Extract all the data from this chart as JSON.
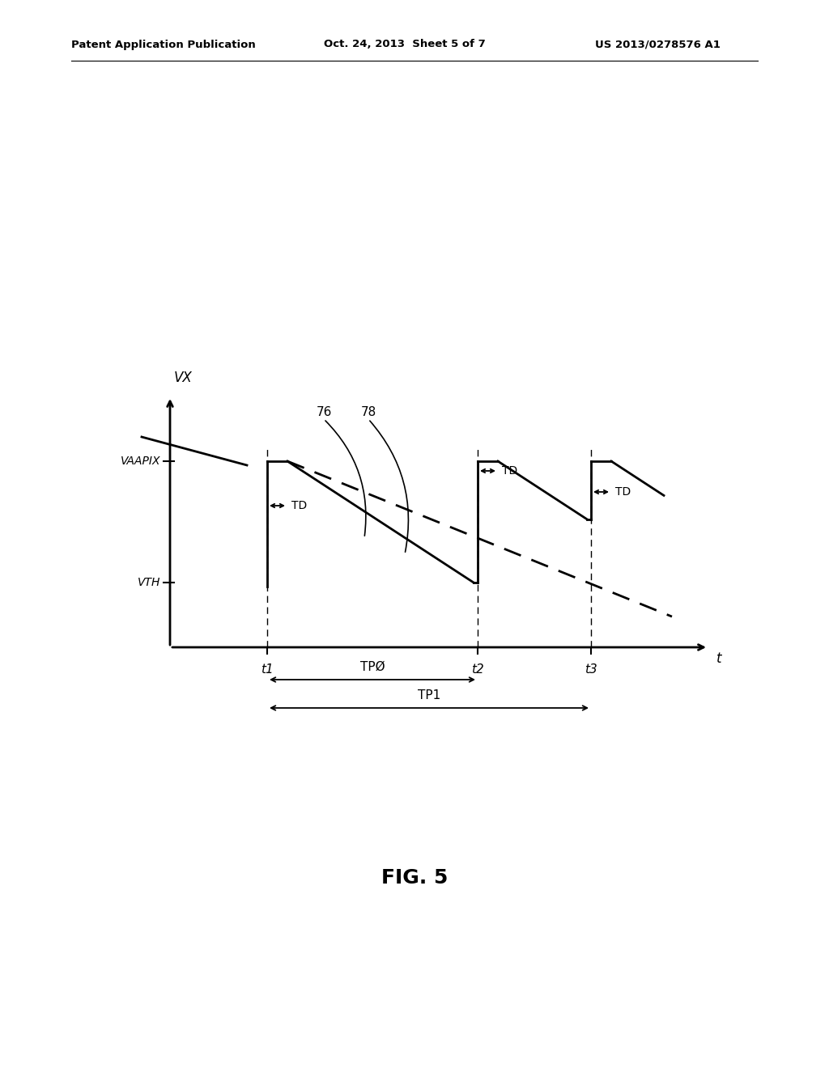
{
  "background_color": "#ffffff",
  "header_left": "Patent Application Publication",
  "header_center": "Oct. 24, 2013  Sheet 5 of 7",
  "header_right": "US 2013/0278576 A1",
  "fig_label": "FIG. 5",
  "vx_label": "VX",
  "vaapix_label": "VAAPIX",
  "vth_label": "VTH",
  "t_label": "t",
  "t1_label": "t1",
  "t2_label": "t2",
  "t3_label": "t3",
  "tp0_label": "TPØ",
  "tp1_label": "TP1",
  "td_label": "TD",
  "label76": "76",
  "label78": "78"
}
